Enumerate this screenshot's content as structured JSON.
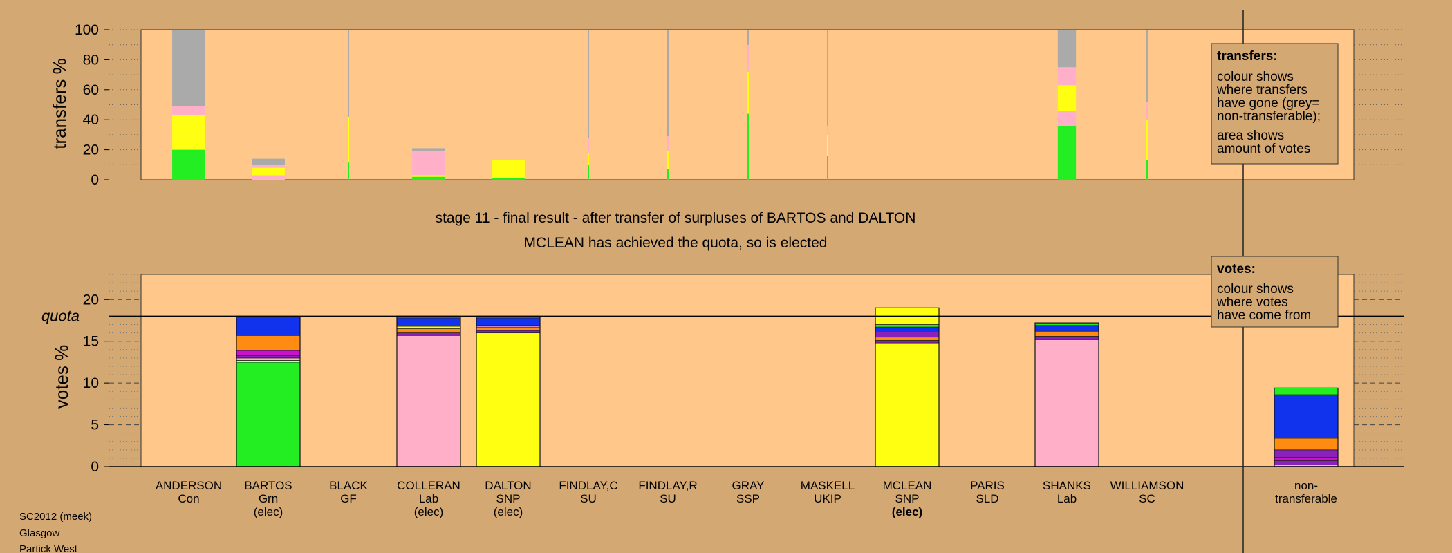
{
  "colors": {
    "background": "#d4a872",
    "plot_bg": "#ffc88a",
    "Grn": "#22ee22",
    "Lab": "#ffb0c8",
    "SNP": "#ffff11",
    "Con": "#1133ee",
    "Lib": "#ff8c11",
    "Oth1": "#8822bb",
    "Oth2": "#cc11cc",
    "Oth3": "#ffaaff",
    "nontransferable": "#aaaaaa"
  },
  "labels": {
    "transfers_axis": "transfers %",
    "votes_axis": "votes %",
    "quota": "quota",
    "stage_line1": "stage 11 - final result - after transfer of surpluses of BARTOS and DALTON",
    "stage_line2": "MCLEAN has achieved the quota, so is elected",
    "transfers_box_title": "transfers:",
    "transfers_box_line1": "colour shows",
    "transfers_box_line2": "where transfers",
    "transfers_box_line3": "have gone (grey=",
    "transfers_box_line4": "non-transferable);",
    "transfers_box_line5": "area shows",
    "transfers_box_line6": "amount of votes",
    "votes_box_title": "votes:",
    "votes_box_line1": "colour shows",
    "votes_box_line2": "where votes",
    "votes_box_line3": "have come from",
    "footer_line1": "SC2012 (meek)",
    "footer_line2": "Glasgow",
    "footer_line3": "Partick West"
  },
  "chart_data": [
    {
      "type": "bar",
      "name": "transfers",
      "ylabel": "transfers %",
      "ylim": [
        0,
        100
      ],
      "yticks": [
        0,
        20,
        40,
        60,
        80,
        100
      ],
      "bars": [
        {
          "candidate": "ANDERSON",
          "width_share": 1.0,
          "segments": [
            {
              "color": "Grn",
              "value": 20
            },
            {
              "color": "SNP",
              "value": 10
            },
            {
              "color": "SNP",
              "value": 13
            },
            {
              "color": "Lab",
              "value": 6
            },
            {
              "color": "nontransferable",
              "value": 51
            }
          ]
        },
        {
          "candidate": "BARTOS",
          "width_share": 1.0,
          "segments": [
            {
              "color": "Lab",
              "value": 3
            },
            {
              "color": "SNP",
              "value": 5
            },
            {
              "color": "Lab",
              "value": 2
            },
            {
              "color": "nontransferable",
              "value": 4
            }
          ]
        },
        {
          "candidate": "BLACK",
          "width_share": 0.02,
          "segments": [
            {
              "color": "Grn",
              "value": 12
            },
            {
              "color": "SNP",
              "value": 30
            },
            {
              "color": "nontransferable",
              "value": 58
            }
          ]
        },
        {
          "candidate": "COLLERAN",
          "width_share": 1.0,
          "segments": [
            {
              "color": "Grn",
              "value": 2
            },
            {
              "color": "SNP",
              "value": 1
            },
            {
              "color": "Lab",
              "value": 16
            },
            {
              "color": "nontransferable",
              "value": 2
            }
          ]
        },
        {
          "candidate": "DALTON",
          "width_share": 1.0,
          "segments": [
            {
              "color": "Grn",
              "value": 1
            },
            {
              "color": "SNP",
              "value": 12
            }
          ]
        },
        {
          "candidate": "FINDLAY,C",
          "width_share": 0.02,
          "segments": [
            {
              "color": "Grn",
              "value": 10
            },
            {
              "color": "SNP",
              "value": 8
            },
            {
              "color": "Lab",
              "value": 10
            },
            {
              "color": "nontransferable",
              "value": 72
            }
          ]
        },
        {
          "candidate": "FINDLAY,R",
          "width_share": 0.02,
          "segments": [
            {
              "color": "Grn",
              "value": 7
            },
            {
              "color": "SNP",
              "value": 12
            },
            {
              "color": "Lab",
              "value": 10
            },
            {
              "color": "nontransferable",
              "value": 71
            }
          ]
        },
        {
          "candidate": "GRAY",
          "width_share": 0.03,
          "segments": [
            {
              "color": "Grn",
              "value": 44
            },
            {
              "color": "SNP",
              "value": 8
            },
            {
              "color": "SNP",
              "value": 20
            },
            {
              "color": "Lab",
              "value": 18
            },
            {
              "color": "nontransferable",
              "value": 10
            }
          ]
        },
        {
          "candidate": "MASKELL",
          "width_share": 0.02,
          "segments": [
            {
              "color": "Grn",
              "value": 16
            },
            {
              "color": "SNP",
              "value": 14
            },
            {
              "color": "Lab",
              "value": 6
            },
            {
              "color": "nontransferable",
              "value": 64
            }
          ]
        },
        {
          "candidate": "MCLEAN",
          "width_share": 0,
          "segments": []
        },
        {
          "candidate": "PARIS",
          "width_share": 0,
          "segments": []
        },
        {
          "candidate": "SHANKS",
          "width_share": 0.55,
          "segments": [
            {
              "color": "Grn",
              "value": 36
            },
            {
              "color": "Lab",
              "value": 10
            },
            {
              "color": "SNP",
              "value": 17
            },
            {
              "color": "Lab",
              "value": 12
            },
            {
              "color": "nontransferable",
              "value": 25
            }
          ]
        },
        {
          "candidate": "WILLIAMSON",
          "width_share": 0.02,
          "segments": [
            {
              "color": "Grn",
              "value": 13
            },
            {
              "color": "SNP",
              "value": 27
            },
            {
              "color": "Lab",
              "value": 12
            },
            {
              "color": "nontransferable",
              "value": 48
            }
          ]
        }
      ]
    },
    {
      "type": "bar",
      "name": "votes",
      "ylabel": "votes %",
      "ylim": [
        0,
        23
      ],
      "yticks": [
        0,
        5,
        10,
        15,
        20
      ],
      "quota": 18,
      "bars": [
        {
          "candidate": "ANDERSON",
          "party": "Con",
          "status": "",
          "segments": []
        },
        {
          "candidate": "BARTOS",
          "party": "Grn",
          "status": "(elec)",
          "segments": [
            {
              "color": "Grn",
              "value": 12.5
            },
            {
              "color": "SNP",
              "value": 0.2
            },
            {
              "color": "Lab",
              "value": 0.3
            },
            {
              "color": "Oth1",
              "value": 0.3
            },
            {
              "color": "Oth2",
              "value": 0.6
            },
            {
              "color": "Lib",
              "value": 1.8
            },
            {
              "color": "Con",
              "value": 2.3
            }
          ]
        },
        {
          "candidate": "BLACK",
          "party": "GF",
          "status": "",
          "segments": []
        },
        {
          "candidate": "COLLERAN",
          "party": "Lab",
          "status": "(elec)",
          "segments": [
            {
              "color": "Lab",
              "value": 15.7
            },
            {
              "color": "Oth1",
              "value": 0.3
            },
            {
              "color": "Lib",
              "value": 0.5
            },
            {
              "color": "SNP",
              "value": 0.3
            },
            {
              "color": "Con",
              "value": 1.0
            },
            {
              "color": "Grn",
              "value": 0.2
            }
          ]
        },
        {
          "candidate": "DALTON",
          "party": "SNP",
          "status": "(elec)",
          "segments": [
            {
              "color": "SNP",
              "value": 16.0
            },
            {
              "color": "Oth1",
              "value": 0.3
            },
            {
              "color": "Lib",
              "value": 0.4
            },
            {
              "color": "Oth3",
              "value": 0.2
            },
            {
              "color": "Con",
              "value": 0.9
            },
            {
              "color": "Grn",
              "value": 0.2
            }
          ]
        },
        {
          "candidate": "FINDLAY,C",
          "party": "SU",
          "status": "",
          "segments": []
        },
        {
          "candidate": "FINDLAY,R",
          "party": "SU",
          "status": "",
          "segments": []
        },
        {
          "candidate": "GRAY",
          "party": "SSP",
          "status": "",
          "segments": []
        },
        {
          "candidate": "MASKELL",
          "party": "UKIP",
          "status": "",
          "segments": []
        },
        {
          "candidate": "MCLEAN",
          "party": "SNP",
          "status": "(elec)",
          "segments": [
            {
              "color": "SNP",
              "value": 14.8
            },
            {
              "color": "Oth1",
              "value": 0.3
            },
            {
              "color": "Lib",
              "value": 0.4
            },
            {
              "color": "Oth1",
              "value": 0.6
            },
            {
              "color": "Con",
              "value": 0.6
            },
            {
              "color": "Grn",
              "value": 0.3
            },
            {
              "color": "SNP",
              "value": 2.0
            }
          ]
        },
        {
          "candidate": "PARIS",
          "party": "SLD",
          "status": "",
          "segments": []
        },
        {
          "candidate": "SHANKS",
          "party": "Lab",
          "status": "",
          "segments": [
            {
              "color": "Lab",
              "value": 15.2
            },
            {
              "color": "Oth1",
              "value": 0.4
            },
            {
              "color": "Lib",
              "value": 0.6
            },
            {
              "color": "Con",
              "value": 0.7
            },
            {
              "color": "Grn",
              "value": 0.3
            }
          ]
        },
        {
          "candidate": "WILLIAMSON",
          "party": "SC",
          "status": "",
          "segments": []
        },
        {
          "candidate": "non-",
          "party": "transferable",
          "status": "",
          "segments": [
            {
              "color": "Oth3",
              "value": 0.2
            },
            {
              "color": "Oth1",
              "value": 0.5
            },
            {
              "color": "Oth2",
              "value": 0.4
            },
            {
              "color": "Oth1",
              "value": 0.9
            },
            {
              "color": "Lib",
              "value": 1.4
            },
            {
              "color": "Con",
              "value": 5.2
            },
            {
              "color": "Grn",
              "value": 0.8
            }
          ]
        }
      ]
    }
  ]
}
